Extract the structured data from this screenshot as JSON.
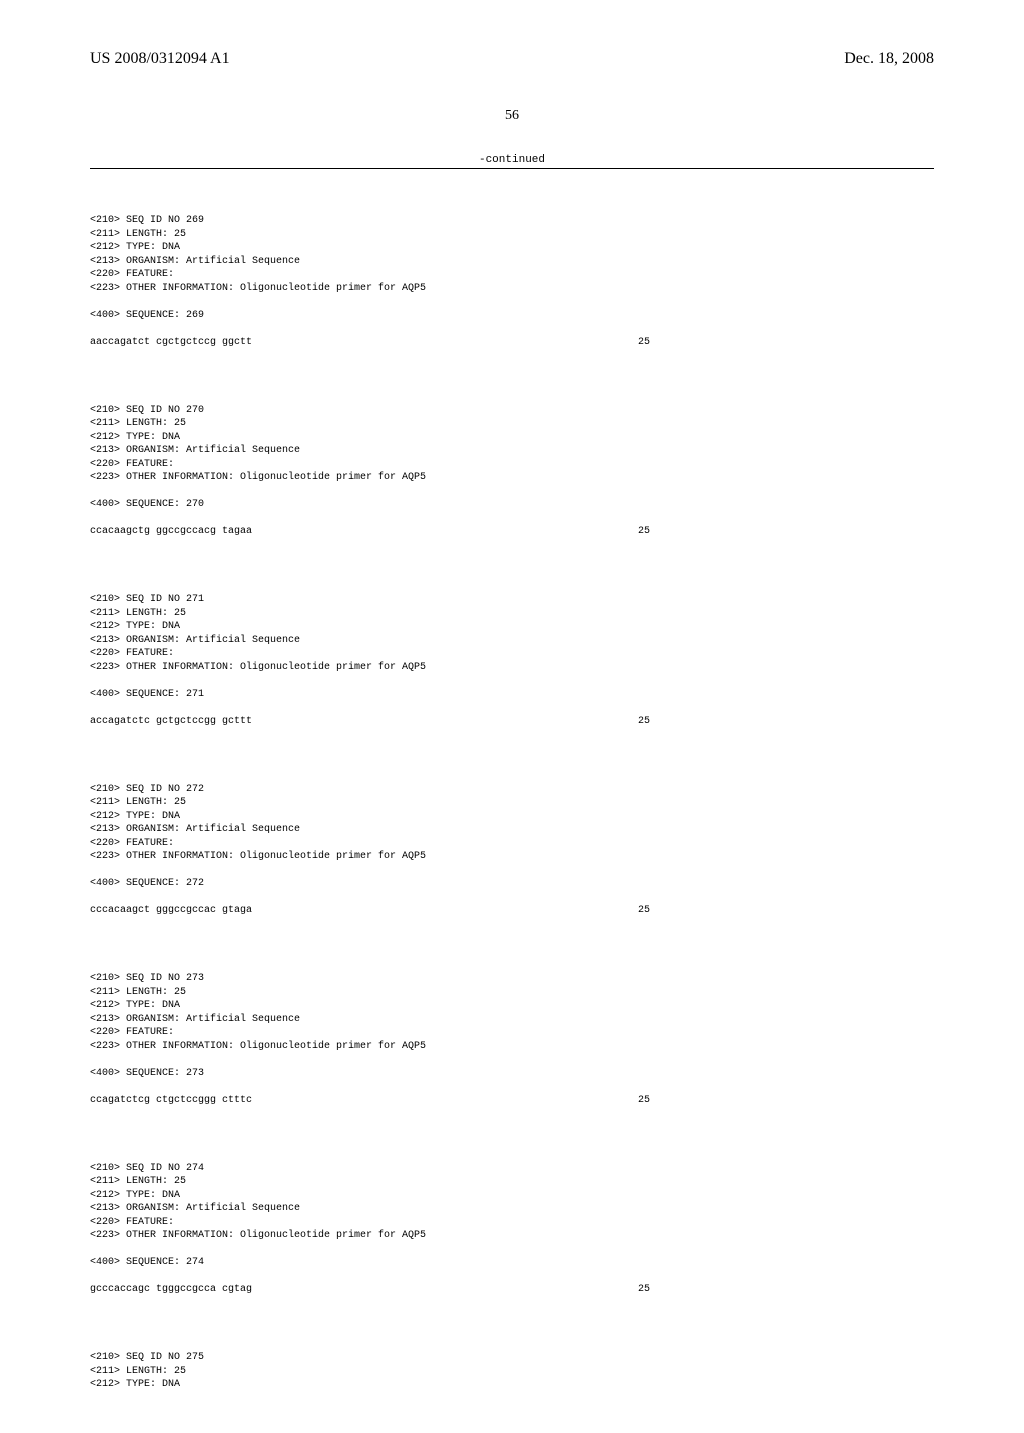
{
  "header": {
    "patent_no": "US 2008/0312094 A1",
    "date": "Dec. 18, 2008"
  },
  "page_number": "56",
  "continued_label": "-continued",
  "sequences": [
    {
      "id": "269",
      "length": "25",
      "type": "DNA",
      "organism": "Artificial Sequence",
      "other_info": "Oligonucleotide primer for AQP5",
      "seq": "aaccagatct cgctgctccg ggctt",
      "seq_len": "25"
    },
    {
      "id": "270",
      "length": "25",
      "type": "DNA",
      "organism": "Artificial Sequence",
      "other_info": "Oligonucleotide primer for AQP5",
      "seq": "ccacaagctg ggccgccacg tagaa",
      "seq_len": "25"
    },
    {
      "id": "271",
      "length": "25",
      "type": "DNA",
      "organism": "Artificial Sequence",
      "other_info": "Oligonucleotide primer for AQP5",
      "seq": "accagatctc gctgctccgg gcttt",
      "seq_len": "25"
    },
    {
      "id": "272",
      "length": "25",
      "type": "DNA",
      "organism": "Artificial Sequence",
      "other_info": "Oligonucleotide primer for AQP5",
      "seq": "cccacaagct gggccgccac gtaga",
      "seq_len": "25"
    },
    {
      "id": "273",
      "length": "25",
      "type": "DNA",
      "organism": "Artificial Sequence",
      "other_info": "Oligonucleotide primer for AQP5",
      "seq": "ccagatctcg ctgctccggg ctttc",
      "seq_len": "25"
    },
    {
      "id": "274",
      "length": "25",
      "type": "DNA",
      "organism": "Artificial Sequence",
      "other_info": "Oligonucleotide primer for AQP5",
      "seq": "gcccaccagc tgggccgcca cgtag",
      "seq_len": "25"
    }
  ],
  "last": {
    "id": "275",
    "length": "25",
    "type": "DNA"
  },
  "labels": {
    "seq_id": "<210> SEQ ID NO ",
    "length": "<211> LENGTH: ",
    "type": "<212> TYPE: ",
    "organism": "<213> ORGANISM: ",
    "feature": "<220> FEATURE:",
    "other_info": "<223> OTHER INFORMATION: ",
    "sequence": "<400> SEQUENCE: "
  }
}
